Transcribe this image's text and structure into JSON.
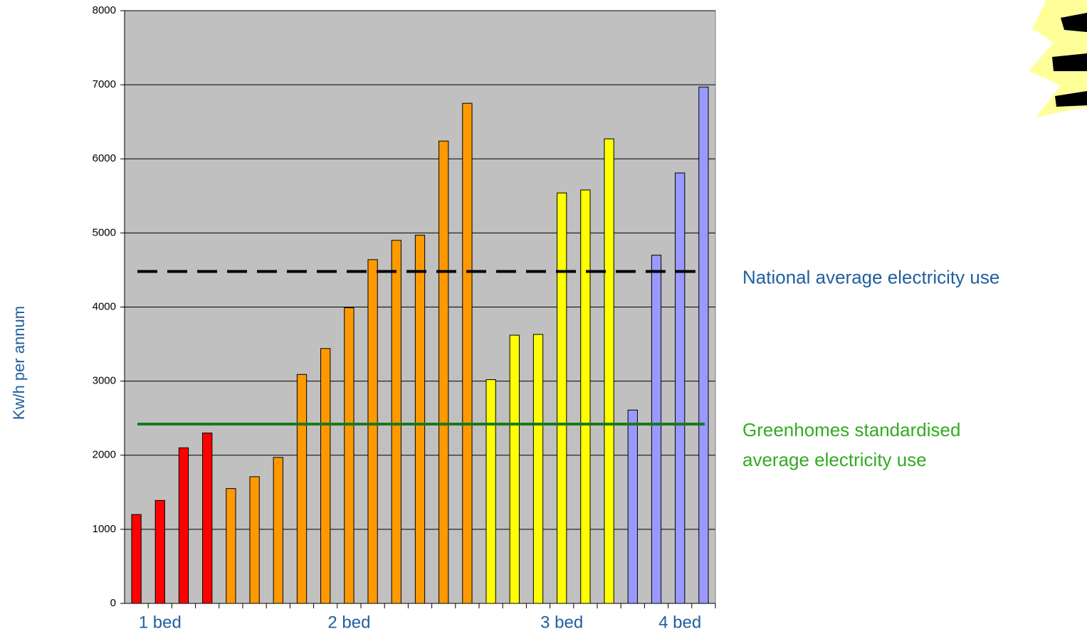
{
  "chart_data": {
    "type": "bar",
    "y_label": "Kw/h per annum",
    "categories": [
      null,
      "1 bed",
      null,
      null,
      null,
      null,
      null,
      null,
      null,
      "2 bed",
      null,
      null,
      null,
      null,
      null,
      null,
      null,
      null,
      "3 bed",
      null,
      null,
      null,
      null,
      "4 bed",
      null
    ],
    "values": [
      1200,
      1390,
      2100,
      2300,
      1550,
      1710,
      1970,
      3090,
      3440,
      3990,
      4640,
      4900,
      4970,
      6240,
      6750,
      3020,
      3620,
      3630,
      5540,
      5580,
      6270,
      2610,
      4700,
      5810,
      6970
    ],
    "colors": [
      "#ff0000",
      "#ff0000",
      "#ff0000",
      "#ff0000",
      "#ff9900",
      "#ff9900",
      "#ff9900",
      "#ff9900",
      "#ff9900",
      "#ff9900",
      "#ff9900",
      "#ff9900",
      "#ff9900",
      "#ff9900",
      "#ff9900",
      "#ffff00",
      "#ffff00",
      "#ffff00",
      "#ffff00",
      "#ffff00",
      "#ffff00",
      "#9999ff",
      "#9999ff",
      "#9999ff",
      "#9999ff"
    ],
    "ylim": [
      0,
      8000
    ],
    "yticks": [
      0,
      1000,
      2000,
      3000,
      4000,
      5000,
      6000,
      7000,
      8000
    ],
    "grid": true,
    "reference_lines": [
      {
        "label_lines": [
          "National average electricity use"
        ],
        "value": 4480,
        "color": "#000000",
        "label_color": "#1f5f9f",
        "style": "dashed"
      },
      {
        "label_lines": [
          "Greenhomes standardised",
          "average electricity use"
        ],
        "value": 2420,
        "color": "#1a7a1a",
        "label_color": "#33aa22",
        "style": "solid"
      }
    ]
  }
}
